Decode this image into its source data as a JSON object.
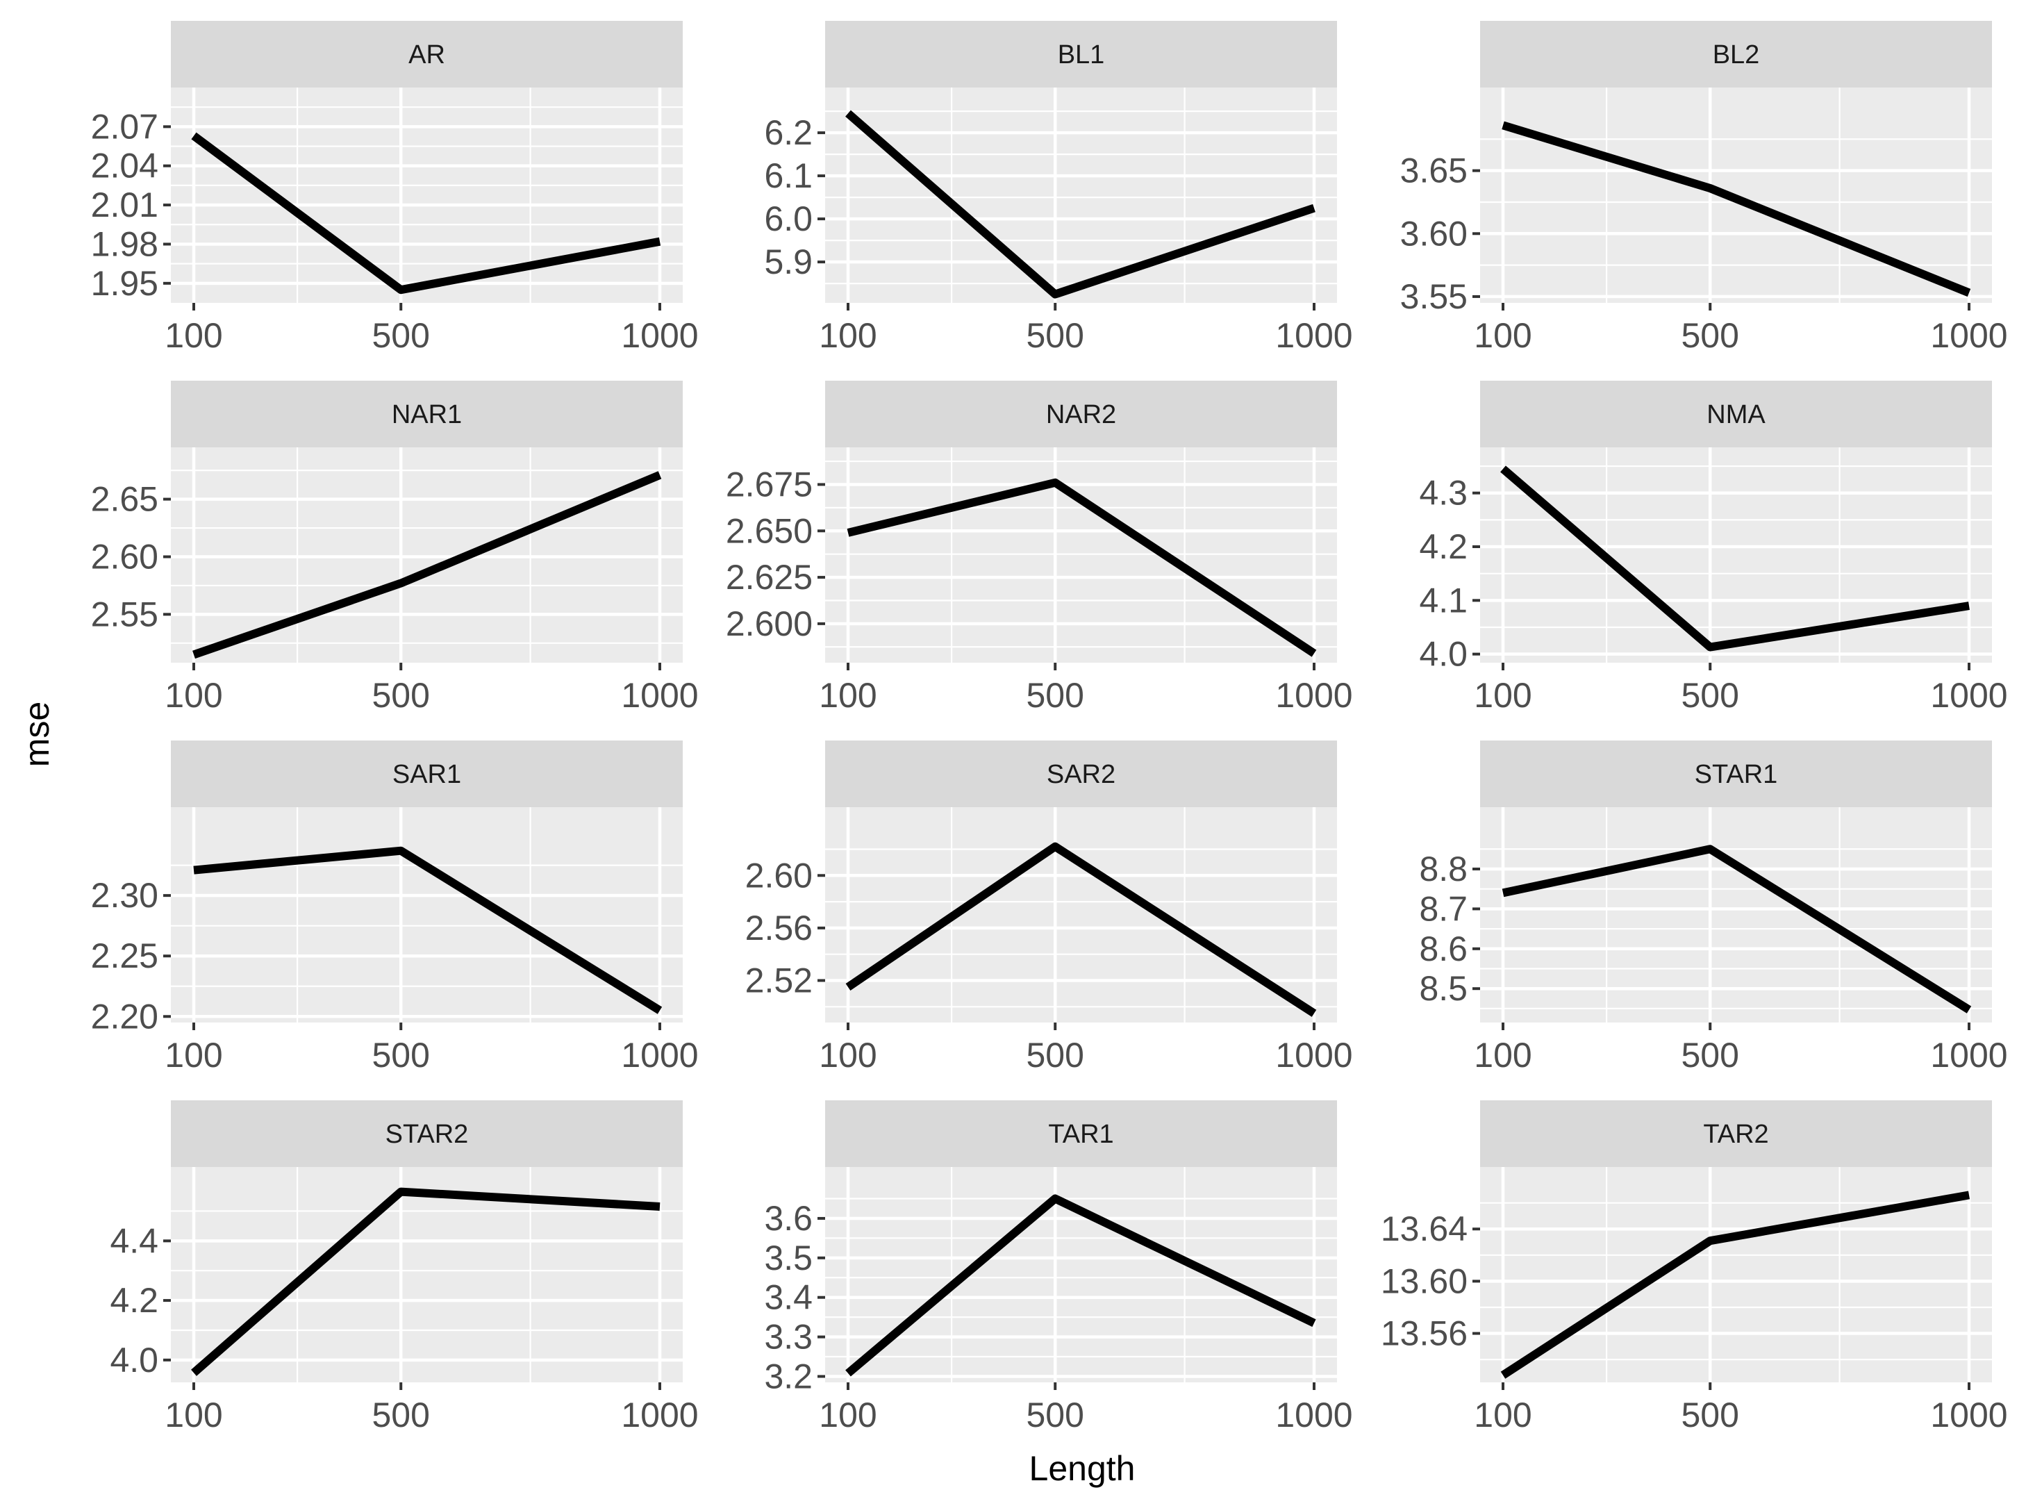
{
  "chart_data": {
    "type": "line",
    "layout": "facet-grid",
    "xlabel": "Length",
    "ylabel": "mse",
    "x": [
      100,
      500,
      1000
    ],
    "x_ticks": [
      "100",
      "500",
      "1000"
    ],
    "line_color": "#000000",
    "panel_background": "#ebebeb",
    "strip_background": "#d9d9d9",
    "grid": true,
    "legend": "none",
    "panels": [
      {
        "title": "AR",
        "ylim": [
          1.935,
          2.1
        ],
        "yticks": [
          "1.95",
          "1.98",
          "2.01",
          "2.04",
          "2.07"
        ],
        "ytick_values": [
          1.95,
          1.98,
          2.01,
          2.04,
          2.07
        ],
        "values": [
          2.063,
          1.945,
          1.982
        ]
      },
      {
        "title": "BL1",
        "ylim": [
          5.805,
          6.305
        ],
        "yticks": [
          "5.9",
          "6.0",
          "6.1",
          "6.2"
        ],
        "ytick_values": [
          5.9,
          6.0,
          6.1,
          6.2
        ],
        "values": [
          6.245,
          5.825,
          6.025
        ]
      },
      {
        "title": "BL2",
        "ylim": [
          3.545,
          3.716
        ],
        "yticks": [
          "3.55",
          "3.60",
          "3.65"
        ],
        "ytick_values": [
          3.55,
          3.6,
          3.65
        ],
        "values": [
          3.686,
          3.636,
          3.553
        ]
      },
      {
        "title": "NAR1",
        "ylim": [
          2.508,
          2.695
        ],
        "yticks": [
          "2.55",
          "2.60",
          "2.65"
        ],
        "ytick_values": [
          2.55,
          2.6,
          2.65
        ],
        "values": [
          2.515,
          2.577,
          2.671
        ]
      },
      {
        "title": "NAR2",
        "ylim": [
          2.579,
          2.695
        ],
        "yticks": [
          "2.600",
          "2.625",
          "2.650",
          "2.675"
        ],
        "ytick_values": [
          2.6,
          2.625,
          2.65,
          2.675
        ],
        "values": [
          2.649,
          2.676,
          2.584
        ]
      },
      {
        "title": "NMA",
        "ylim": [
          3.984,
          4.385
        ],
        "yticks": [
          "4.0",
          "4.1",
          "4.2",
          "4.3"
        ],
        "ytick_values": [
          4.0,
          4.1,
          4.2,
          4.3
        ],
        "values": [
          4.345,
          4.013,
          4.09
        ]
      },
      {
        "title": "SAR1",
        "ylim": [
          2.195,
          2.373
        ],
        "yticks": [
          "2.20",
          "2.25",
          "2.30"
        ],
        "ytick_values": [
          2.2,
          2.25,
          2.3
        ],
        "values": [
          2.321,
          2.337,
          2.205
        ]
      },
      {
        "title": "SAR2",
        "ylim": [
          2.488,
          2.652
        ],
        "yticks": [
          "2.52",
          "2.56",
          "2.60"
        ],
        "ytick_values": [
          2.52,
          2.56,
          2.6
        ],
        "values": [
          2.515,
          2.622,
          2.495
        ]
      },
      {
        "title": "STAR1",
        "ylim": [
          8.415,
          8.955
        ],
        "yticks": [
          "8.5",
          "8.6",
          "8.7",
          "8.8"
        ],
        "ytick_values": [
          8.5,
          8.6,
          8.7,
          8.8
        ],
        "values": [
          8.74,
          8.85,
          8.447
        ]
      },
      {
        "title": "STAR2",
        "ylim": [
          3.925,
          4.648
        ],
        "yticks": [
          "4.0",
          "4.2",
          "4.4"
        ],
        "ytick_values": [
          4.0,
          4.2,
          4.4
        ],
        "values": [
          3.957,
          4.565,
          4.515
        ]
      },
      {
        "title": "TAR1",
        "ylim": [
          3.185,
          3.73
        ],
        "yticks": [
          "3.2",
          "3.3",
          "3.4",
          "3.5",
          "3.6"
        ],
        "ytick_values": [
          3.2,
          3.3,
          3.4,
          3.5,
          3.6
        ],
        "values": [
          3.208,
          3.65,
          3.335
        ]
      },
      {
        "title": "TAR2",
        "ylim": [
          13.5225,
          13.6875
        ],
        "yticks": [
          "13.56",
          "13.60",
          "13.64"
        ],
        "ytick_values": [
          13.56,
          13.6,
          13.64
        ],
        "values": [
          13.528,
          13.631,
          13.666
        ]
      }
    ]
  }
}
